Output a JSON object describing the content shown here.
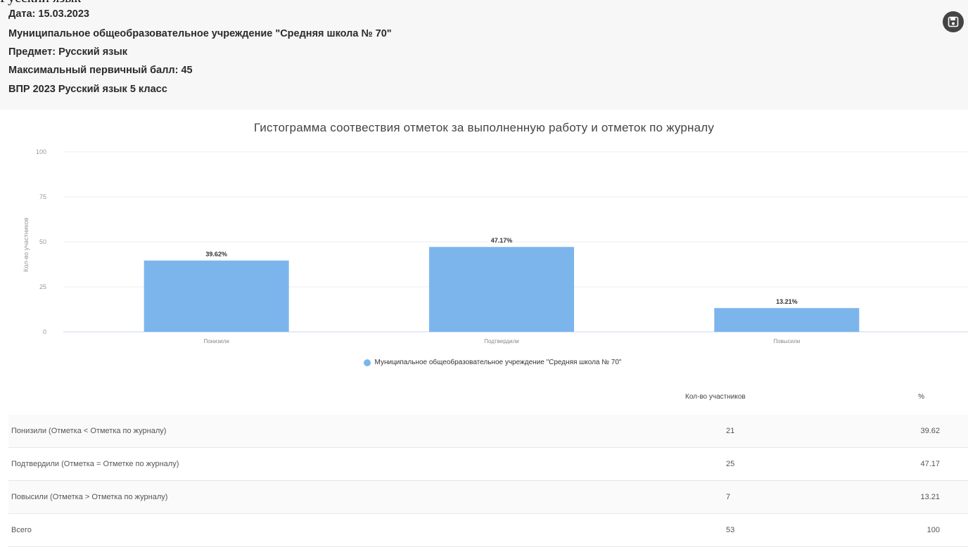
{
  "page_top_cut_text": "Русский язык",
  "header": {
    "date": "Дата: 15.03.2023",
    "school": "Муниципальное общеобразовательное учреждение \"Средняя школа № 70\"",
    "subject": "Предмет: Русский язык",
    "max_score": "Максимальный первичный балл: 45",
    "exam": "ВПР 2023 Русский язык 5 класс",
    "save_icon": "save-icon"
  },
  "chart_data": {
    "type": "bar",
    "title": "Гистограмма соотвествия отметок за выполненную работу и отметок по журналу",
    "ylabel": "Кол-во участников",
    "xlabel": "",
    "ylim": [
      0,
      100
    ],
    "yticks": [
      "0",
      "25",
      "50",
      "75",
      "100"
    ],
    "categories": [
      "Понизили",
      "Подтвердили",
      "Повысили"
    ],
    "series": [
      {
        "name": "Муниципальное общеобразовательное учреждение \"Средняя школа № 70\"",
        "values": [
          39.62,
          47.17,
          13.21
        ],
        "labels": [
          "39.62%",
          "47.17%",
          "13.21%"
        ],
        "color": "#7cb5ec"
      }
    ],
    "legend": "bottom-center",
    "grid": true
  },
  "table": {
    "headers": [
      "",
      "Кол-во участников",
      "%"
    ],
    "rows": [
      {
        "label": "Понизили (Отметка < Отметка по журналу)",
        "count": "21",
        "pct": "39.62"
      },
      {
        "label": "Подтвердили (Отметка = Отметке по журналу)",
        "count": "25",
        "pct": "47.17"
      },
      {
        "label": "Повысили (Отметка > Отметка по журналу)",
        "count": "7",
        "pct": "13.21"
      },
      {
        "label": "Всего",
        "count": "53",
        "pct": "100"
      }
    ]
  }
}
